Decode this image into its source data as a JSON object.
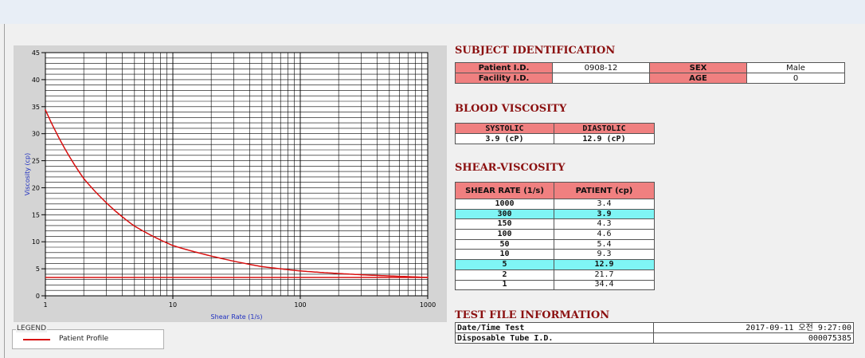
{
  "legend": {
    "title": "LEGEND",
    "entry": "Patient Profile",
    "color": "#d81010"
  },
  "subject_identification": {
    "title": "SUBJECT IDENTIFICATION",
    "patient_id_label": "Patient I.D.",
    "patient_id_value": "0908-12",
    "facility_id_label": "Facility I.D.",
    "facility_id_value": "",
    "sex_label": "SEX",
    "sex_value": "Male",
    "age_label": "AGE",
    "age_value": "0"
  },
  "blood_viscosity": {
    "title": "BLOOD VISCOSITY",
    "systolic_label": "SYSTOLIC",
    "diastolic_label": "DIASTOLIC",
    "systolic_value": "3.9 (cP)",
    "diastolic_value": "12.9 (cP)"
  },
  "shear_viscosity": {
    "title": "SHEAR-VISCOSITY",
    "col_rate": "SHEAR RATE (1/s)",
    "col_patient": "PATIENT (cp)",
    "rows": [
      {
        "rate": "1000",
        "value": "3.4",
        "highlight": false
      },
      {
        "rate": "300",
        "value": "3.9",
        "highlight": true
      },
      {
        "rate": "150",
        "value": "4.3",
        "highlight": false
      },
      {
        "rate": "100",
        "value": "4.6",
        "highlight": false
      },
      {
        "rate": "50",
        "value": "5.4",
        "highlight": false
      },
      {
        "rate": "10",
        "value": "9.3",
        "highlight": false
      },
      {
        "rate": "5",
        "value": "12.9",
        "highlight": true
      },
      {
        "rate": "2",
        "value": "21.7",
        "highlight": false
      },
      {
        "rate": "1",
        "value": "34.4",
        "highlight": false
      }
    ]
  },
  "test_file": {
    "title": "TEST FILE INFORMATION",
    "datetime_label": "Date/Time Test",
    "datetime_value": "2017-09-11  오전 9:27:00",
    "tube_label": "Disposable Tube I.D.",
    "tube_value": "000075385"
  },
  "chart_data": {
    "type": "line",
    "xlabel": "Shear Rate (1/s)",
    "ylabel": "Viscosity (cp)",
    "xscale": "log",
    "xlim": [
      1,
      1000
    ],
    "ylim": [
      0,
      45
    ],
    "x_ticks": [
      "1",
      "10",
      "100",
      "1000"
    ],
    "y_ticks": [
      "0",
      "5",
      "10",
      "15",
      "20",
      "25",
      "30",
      "35",
      "40",
      "45"
    ],
    "grid": true,
    "series": [
      {
        "name": "Patient Profile",
        "color": "#d81010",
        "x": [
          1,
          2,
          5,
          10,
          50,
          100,
          150,
          300,
          1000
        ],
        "y": [
          34.4,
          21.7,
          12.9,
          9.3,
          5.4,
          4.6,
          4.3,
          3.9,
          3.4
        ]
      }
    ],
    "reference_line": {
      "y": 3.4,
      "color": "#d81010"
    }
  }
}
